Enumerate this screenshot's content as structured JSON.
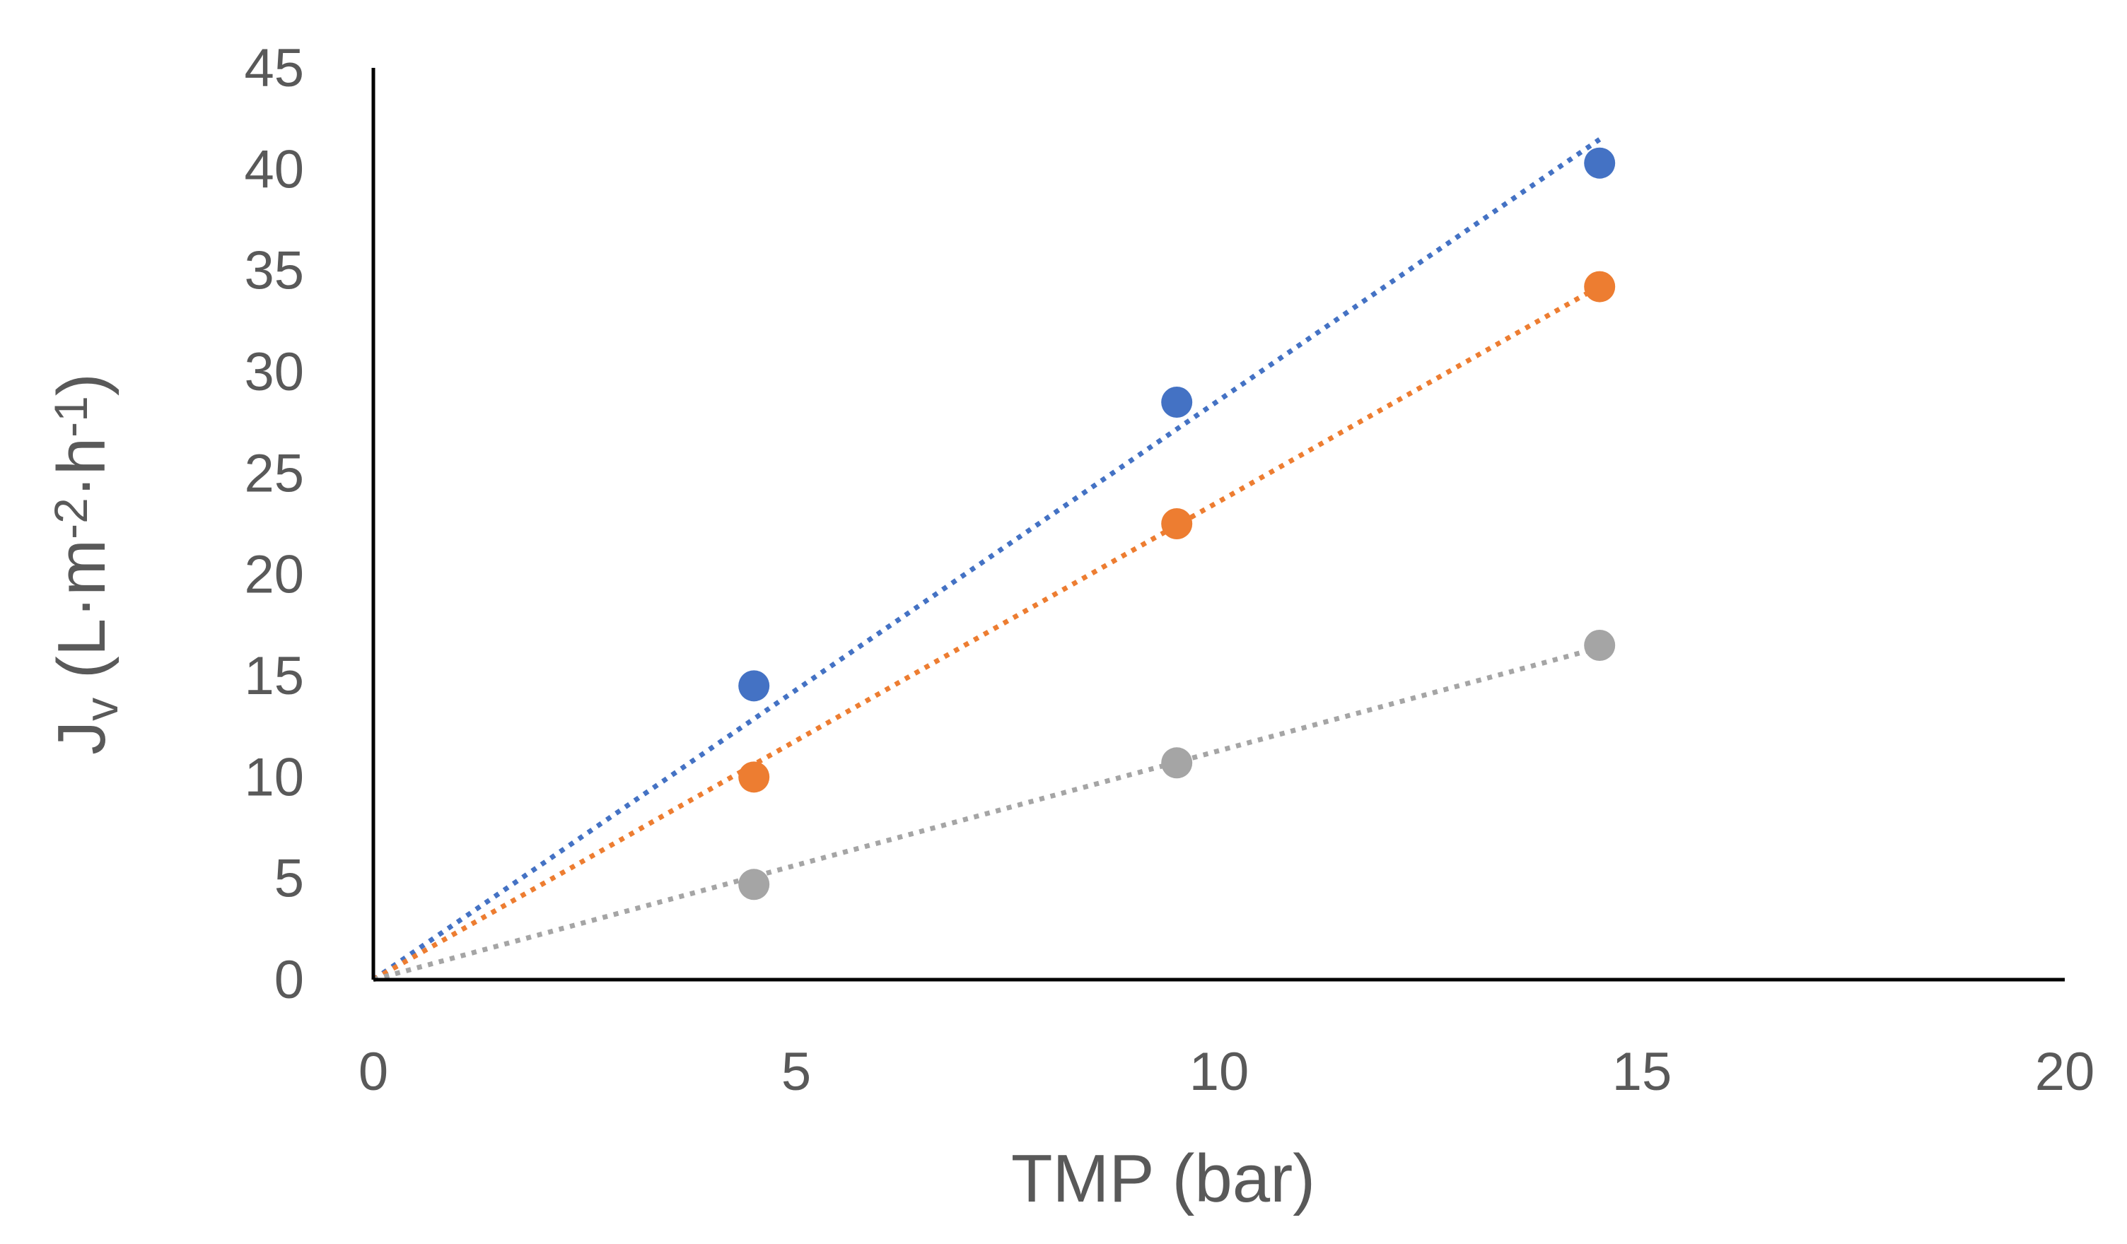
{
  "chart_data": {
    "type": "scatter",
    "title": "",
    "xlabel": "TMP (bar)",
    "ylabel": {
      "main": "J",
      "subscript": "v",
      "units": [
        {
          "text": " (L·m",
          "sup": false
        },
        {
          "text": "-2",
          "sup": true
        },
        {
          "text": "·h",
          "sup": false
        },
        {
          "text": "-1",
          "sup": true
        },
        {
          "text": ")",
          "sup": false
        }
      ]
    },
    "xlim": [
      0,
      20
    ],
    "ylim": [
      0,
      45
    ],
    "xticks": [
      "0",
      "5",
      "10",
      "15",
      "20"
    ],
    "yticks": [
      "0",
      "5",
      "10",
      "15",
      "20",
      "25",
      "30",
      "35",
      "40",
      "45"
    ],
    "grid": false,
    "legend": "none",
    "series": [
      {
        "name": "series-blue",
        "color": "#4472C4",
        "x": [
          4.5,
          9.5,
          14.5
        ],
        "y": [
          14.5,
          28.5,
          40.3
        ],
        "trendline": {
          "type": "linear",
          "intercept": 0,
          "slope": 2.86
        }
      },
      {
        "name": "series-orange",
        "color": "#ED7D31",
        "x": [
          4.5,
          9.5,
          14.5
        ],
        "y": [
          10.0,
          22.5,
          34.2
        ],
        "trendline": {
          "type": "linear",
          "intercept": 0,
          "slope": 2.36
        }
      },
      {
        "name": "series-gray",
        "color": "#A5A5A5",
        "x": [
          4.5,
          9.5,
          14.5
        ],
        "y": [
          4.7,
          10.7,
          16.5
        ],
        "trendline": {
          "type": "linear",
          "intercept": 0,
          "slope": 1.13
        }
      }
    ]
  }
}
